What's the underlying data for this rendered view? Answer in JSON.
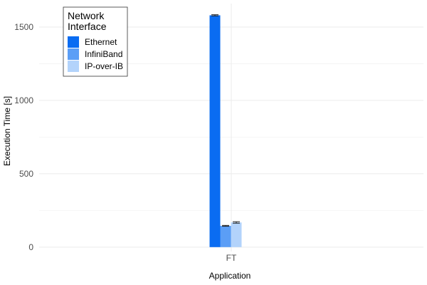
{
  "chart_data": {
    "type": "bar",
    "categories": [
      "FT"
    ],
    "xlabel": "Application",
    "ylabel": "Execution Time [s]",
    "ylim": [
      -30,
      1660
    ],
    "yticks": [
      0,
      500,
      1000,
      1500
    ],
    "grid": true,
    "legend": {
      "title_lines": [
        "Network",
        "Interface"
      ],
      "position": "top-left"
    },
    "series": [
      {
        "name": "Ethernet",
        "values": [
          1580
        ],
        "error": [
          4
        ],
        "color": "#0A6CF2"
      },
      {
        "name": "InfiniBand",
        "values": [
          145
        ],
        "error": [
          3
        ],
        "color": "#5B9EF6"
      },
      {
        "name": "IP-over-IB",
        "values": [
          168
        ],
        "error": [
          5
        ],
        "color": "#B3D3FB"
      }
    ]
  }
}
